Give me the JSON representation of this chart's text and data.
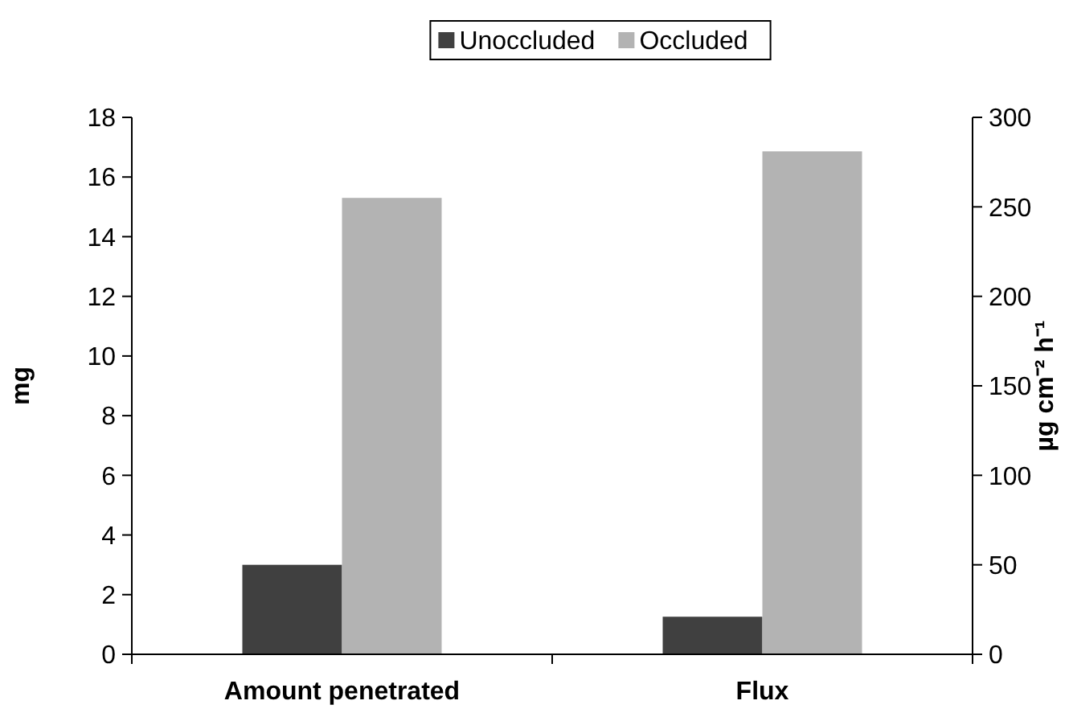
{
  "chart_data": {
    "type": "bar",
    "categories": [
      "Amount penetrated",
      "Flux"
    ],
    "ylabel": "mg",
    "y2label": "µg cm⁻² h⁻¹",
    "ylim": [
      0,
      18
    ],
    "yticks": [
      0,
      2,
      4,
      6,
      8,
      10,
      12,
      14,
      16,
      18
    ],
    "y2lim": [
      0,
      300
    ],
    "y2ticks": [
      0,
      50,
      100,
      150,
      200,
      250,
      300
    ],
    "legend": "top",
    "grid": false,
    "series": [
      {
        "name": "Unoccluded",
        "color": "#404040",
        "values": [
          3.0,
          null
        ]
      },
      {
        "name": "Occluded",
        "color": "#b3b3b3",
        "values": [
          15.3,
          null
        ]
      },
      {
        "color": "#404040",
        "values": [
          null,
          21
        ],
        "axis": "y2"
      },
      {
        "color": "#b3b3b3",
        "values": [
          null,
          281
        ],
        "axis": "y2"
      }
    ]
  }
}
